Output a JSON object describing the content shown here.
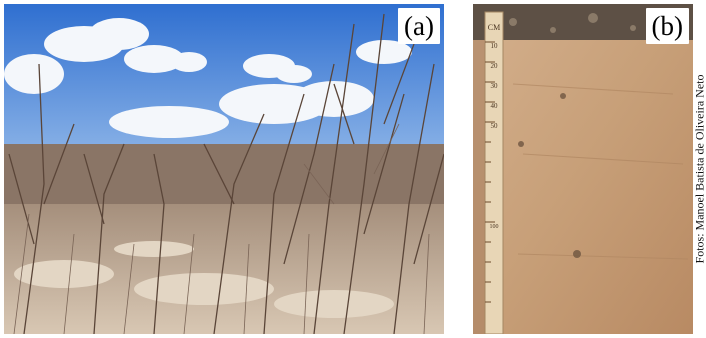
{
  "panels": [
    {
      "label": "(a)",
      "subject": "dry caatinga shrubland under blue sky with clouds"
    },
    {
      "label": "(b)",
      "subject": "soil profile with measuring ruler"
    }
  ],
  "ruler": {
    "unit": "CM",
    "marks": [
      "10",
      "20",
      "30",
      "40",
      "50",
      "100"
    ]
  },
  "credit": "Fotos: Manoel Batista de Oliveira Neto",
  "colors": {
    "sky": "#3f7fd8",
    "soil": "#c9a27d",
    "ruler": "#e7d6b8"
  }
}
